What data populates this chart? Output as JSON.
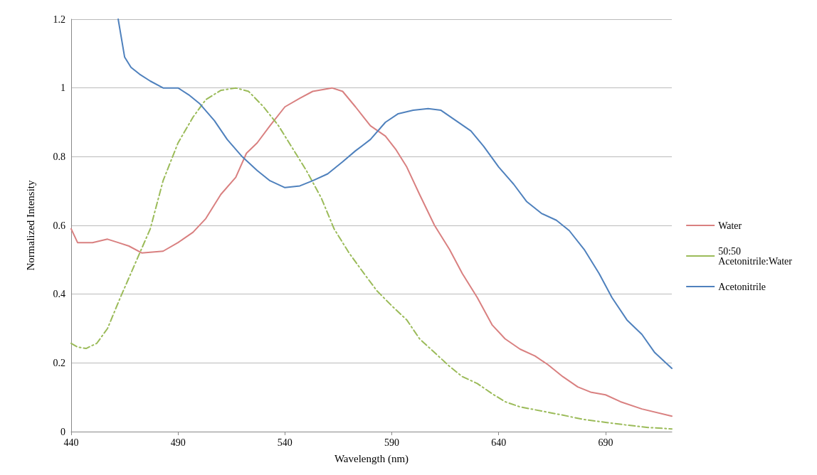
{
  "chart_data": {
    "type": "line",
    "xlabel": "Wavelength (nm)",
    "ylabel": "Normalized Intensity",
    "xlim": [
      440,
      721
    ],
    "xticks": [
      440,
      490,
      540,
      590,
      640,
      690
    ],
    "ylim": [
      0,
      1.2
    ],
    "yticks": [
      0,
      0.2,
      0.4,
      0.6,
      0.8,
      1,
      1.2
    ],
    "grid": "y",
    "legend": "right",
    "marker": "none",
    "series": [
      {
        "name": "Water",
        "color": "#d98080",
        "line_style": "solid",
        "x": [
          440,
          443,
          450,
          457,
          462,
          467,
          473,
          483,
          490,
          497,
          503,
          510,
          517,
          522,
          527,
          533,
          540,
          547,
          553,
          562,
          567,
          573,
          580,
          587,
          592,
          597,
          603,
          610,
          617,
          623,
          630,
          637,
          643,
          650,
          657,
          663,
          670,
          677,
          683,
          690,
          697,
          707,
          721
        ],
        "values": [
          0.59,
          0.55,
          0.55,
          0.56,
          0.55,
          0.54,
          0.52,
          0.525,
          0.55,
          0.58,
          0.62,
          0.69,
          0.74,
          0.81,
          0.84,
          0.89,
          0.945,
          0.97,
          0.99,
          1.0,
          0.99,
          0.945,
          0.89,
          0.86,
          0.82,
          0.77,
          0.69,
          0.6,
          0.53,
          0.46,
          0.39,
          0.31,
          0.27,
          0.24,
          0.22,
          0.195,
          0.16,
          0.13,
          0.115,
          0.107,
          0.087,
          0.066,
          0.045
        ]
      },
      {
        "name": "50:50 Acetonitrile:Water",
        "color": "#9bbb59",
        "line_style": "dashed",
        "x": [
          440,
          443,
          447,
          452,
          457,
          463,
          470,
          477,
          483,
          490,
          497,
          503,
          510,
          517,
          523,
          530,
          537,
          543,
          550,
          557,
          563,
          570,
          577,
          583,
          590,
          597,
          603,
          610,
          617,
          623,
          630,
          637,
          643,
          650,
          660,
          670,
          680,
          690,
          700,
          710,
          721
        ],
        "values": [
          0.257,
          0.246,
          0.242,
          0.257,
          0.3,
          0.39,
          0.49,
          0.59,
          0.73,
          0.84,
          0.915,
          0.966,
          0.993,
          1.0,
          0.99,
          0.945,
          0.89,
          0.83,
          0.76,
          0.68,
          0.59,
          0.52,
          0.46,
          0.41,
          0.366,
          0.325,
          0.27,
          0.23,
          0.19,
          0.16,
          0.14,
          0.11,
          0.087,
          0.072,
          0.06,
          0.048,
          0.035,
          0.027,
          0.019,
          0.012,
          0.008
        ]
      },
      {
        "name": "Acetonitrile",
        "color": "#4f81bd",
        "line_style": "solid",
        "x": [
          462,
          465,
          468,
          472,
          477,
          483,
          490,
          495,
          500,
          507,
          513,
          520,
          527,
          533,
          540,
          547,
          553,
          560,
          567,
          573,
          580,
          587,
          593,
          600,
          607,
          613,
          620,
          627,
          633,
          640,
          647,
          653,
          660,
          667,
          673,
          680,
          687,
          693,
          700,
          707,
          713,
          721
        ],
        "values": [
          1.2,
          1.09,
          1.06,
          1.04,
          1.02,
          1.0,
          1.0,
          0.98,
          0.955,
          0.905,
          0.85,
          0.8,
          0.76,
          0.73,
          0.71,
          0.715,
          0.73,
          0.75,
          0.785,
          0.817,
          0.85,
          0.9,
          0.925,
          0.935,
          0.94,
          0.935,
          0.905,
          0.875,
          0.83,
          0.77,
          0.72,
          0.67,
          0.635,
          0.615,
          0.585,
          0.53,
          0.46,
          0.39,
          0.325,
          0.283,
          0.23,
          0.184
        ]
      }
    ]
  }
}
